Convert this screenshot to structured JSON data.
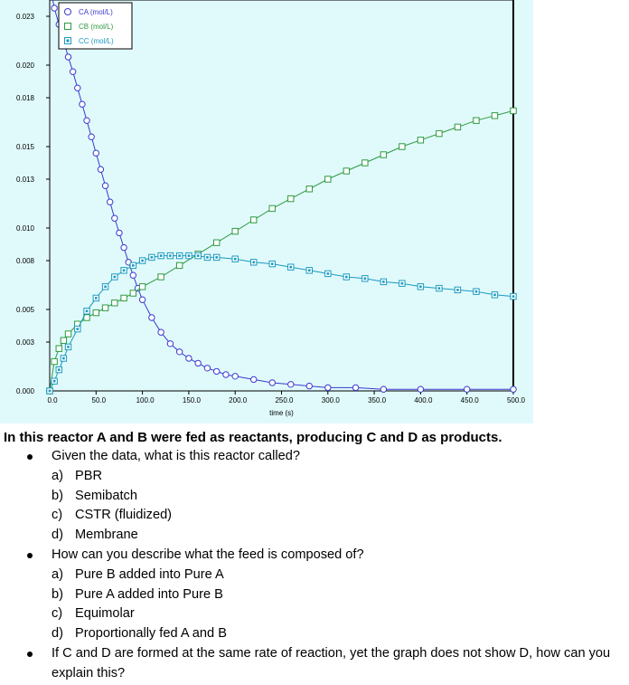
{
  "chart_data": {
    "type": "scatter",
    "xlabel": "time (s)",
    "ylabel": "",
    "xlim": [
      0,
      500
    ],
    "ylim": [
      0,
      0.024
    ],
    "x_ticks": [
      "0.0",
      "50.0",
      "100.0",
      "150.0",
      "200.0",
      "250.0",
      "300.0",
      "350.0",
      "400.0",
      "450.0",
      "500.0"
    ],
    "y_ticks": [
      "0.000",
      "0.003",
      "0.005",
      "0.008",
      "0.010",
      "0.013",
      "0.015",
      "0.018",
      "0.020",
      "0.023"
    ],
    "legend_position": "top-left",
    "series": [
      {
        "name": "CA (mol/L)",
        "marker": "circle",
        "color": "#3a3ad0",
        "x": [
          0,
          5,
          10,
          15,
          20,
          25,
          30,
          35,
          40,
          45,
          50,
          55,
          60,
          65,
          70,
          75,
          80,
          85,
          90,
          95,
          100,
          110,
          120,
          130,
          140,
          150,
          160,
          170,
          180,
          190,
          200,
          220,
          240,
          260,
          280,
          300,
          330,
          360,
          400,
          450,
          500
        ],
        "y": [
          0.025,
          0.0235,
          0.0225,
          0.0215,
          0.0205,
          0.0196,
          0.0186,
          0.0176,
          0.0166,
          0.0156,
          0.0146,
          0.0136,
          0.0126,
          0.0116,
          0.0106,
          0.0097,
          0.0088,
          0.0079,
          0.0071,
          0.0063,
          0.0056,
          0.0045,
          0.0036,
          0.0029,
          0.0024,
          0.002,
          0.0017,
          0.0014,
          0.0012,
          0.001,
          0.0009,
          0.0007,
          0.0005,
          0.0004,
          0.0003,
          0.0002,
          0.0002,
          0.0001,
          0.0001,
          0.0001,
          0.0001
        ]
      },
      {
        "name": "CB (mol/L)",
        "marker": "square",
        "color": "#2e9a40",
        "x": [
          0,
          5,
          10,
          15,
          20,
          30,
          40,
          50,
          60,
          70,
          80,
          90,
          100,
          120,
          140,
          160,
          180,
          200,
          220,
          240,
          260,
          280,
          300,
          320,
          340,
          360,
          380,
          400,
          420,
          440,
          460,
          480,
          500
        ],
        "y": [
          0.0,
          0.0018,
          0.0026,
          0.0031,
          0.0035,
          0.0041,
          0.0045,
          0.0048,
          0.0051,
          0.0054,
          0.0057,
          0.006,
          0.0064,
          0.007,
          0.0077,
          0.0084,
          0.0091,
          0.0098,
          0.0105,
          0.0112,
          0.0118,
          0.0124,
          0.013,
          0.0135,
          0.014,
          0.0145,
          0.015,
          0.0154,
          0.0158,
          0.0162,
          0.0166,
          0.0169,
          0.0172
        ]
      },
      {
        "name": "CC (mol/L)",
        "marker": "square-filled",
        "color": "#1a9ac0",
        "x": [
          0,
          5,
          10,
          15,
          20,
          30,
          40,
          50,
          60,
          70,
          80,
          90,
          100,
          110,
          120,
          130,
          140,
          150,
          160,
          170,
          180,
          200,
          220,
          240,
          260,
          280,
          300,
          320,
          340,
          360,
          380,
          400,
          420,
          440,
          460,
          480,
          500
        ],
        "y": [
          0.0,
          0.0006,
          0.0013,
          0.002,
          0.0027,
          0.0038,
          0.0049,
          0.0057,
          0.0064,
          0.007,
          0.0074,
          0.0077,
          0.008,
          0.0082,
          0.0083,
          0.0083,
          0.0083,
          0.0083,
          0.0083,
          0.0082,
          0.0082,
          0.0081,
          0.0079,
          0.0078,
          0.0076,
          0.0074,
          0.0072,
          0.007,
          0.0069,
          0.0067,
          0.0066,
          0.0064,
          0.0063,
          0.0062,
          0.0061,
          0.0059,
          0.0058
        ]
      }
    ]
  },
  "intro": "In this reactor A and B were fed as reactants, producing C and D as products.",
  "questions": [
    {
      "text": "Given the data, what is this reactor called?",
      "options": [
        [
          "a)",
          "PBR"
        ],
        [
          "b)",
          "Semibatch"
        ],
        [
          "c)",
          "CSTR (fluidized)"
        ],
        [
          "d)",
          "Membrane"
        ]
      ]
    },
    {
      "text": "How can you describe what the feed is composed of?",
      "options": [
        [
          "a)",
          "Pure B added into Pure A"
        ],
        [
          "b)",
          "Pure A added into Pure B"
        ],
        [
          "c)",
          "Equimolar"
        ],
        [
          "d)",
          "Proportionally fed A and B"
        ]
      ]
    },
    {
      "text": "If C and D are formed at the same rate of reaction, yet the graph does not show D, how can you explain this?",
      "options": []
    }
  ]
}
